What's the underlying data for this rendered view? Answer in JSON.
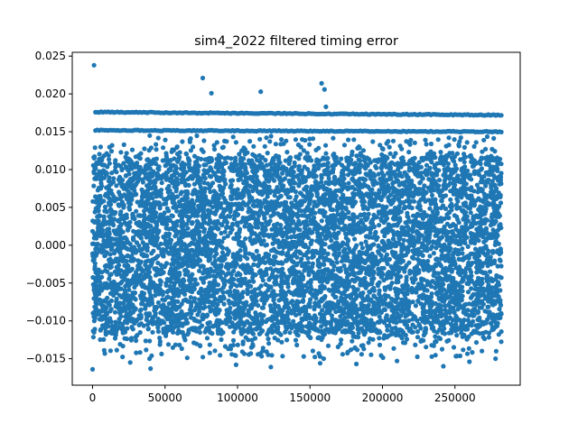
{
  "chart_data": {
    "type": "scatter",
    "title": "sim4_2022 filtered timing error",
    "xlabel": "",
    "ylabel": "",
    "xlim": [
      -14000,
      295000
    ],
    "ylim": [
      -0.0185,
      0.0255
    ],
    "x_ticks": [
      0,
      50000,
      100000,
      150000,
      200000,
      250000
    ],
    "x_tick_labels": [
      "0",
      "50000",
      "100000",
      "150000",
      "200000",
      "250000"
    ],
    "y_ticks": [
      -0.015,
      -0.01,
      -0.005,
      0.0,
      0.005,
      0.01,
      0.015,
      0.02,
      0.025
    ],
    "y_tick_labels": [
      "−0.015",
      "−0.010",
      "−0.005",
      "0.000",
      "0.005",
      "0.010",
      "0.015",
      "0.020",
      "0.025"
    ],
    "grid": false,
    "marker_color": "#1f77b4",
    "x_range_of_data": [
      0,
      282000
    ],
    "dense_band": {
      "y_min": -0.0115,
      "y_max": 0.0115
    },
    "horizontal_bands": [
      {
        "y": 0.0176,
        "x_start": 2000,
        "x_end": 282000,
        "y_end": 0.0172
      },
      {
        "y": 0.0152,
        "x_start": 2000,
        "x_end": 282000,
        "y_end": 0.015
      }
    ],
    "outliers": [
      {
        "x": 1000,
        "y": 0.0238
      },
      {
        "x": 76000,
        "y": 0.0221
      },
      {
        "x": 82000,
        "y": 0.0201
      },
      {
        "x": 116000,
        "y": 0.0203
      },
      {
        "x": 158000,
        "y": 0.0214
      },
      {
        "x": 160000,
        "y": 0.0206
      },
      {
        "x": 161000,
        "y": 0.0183
      },
      {
        "x": 0,
        "y": -0.0164
      },
      {
        "x": 40000,
        "y": -0.0163
      },
      {
        "x": 123000,
        "y": -0.0161
      },
      {
        "x": 242000,
        "y": -0.016
      },
      {
        "x": 99000,
        "y": -0.0158
      },
      {
        "x": 157000,
        "y": -0.0156
      },
      {
        "x": 26000,
        "y": -0.0155
      },
      {
        "x": 182000,
        "y": -0.0157
      },
      {
        "x": 278000,
        "y": -0.015
      },
      {
        "x": 260000,
        "y": -0.0154
      },
      {
        "x": 210000,
        "y": -0.0153
      }
    ]
  }
}
